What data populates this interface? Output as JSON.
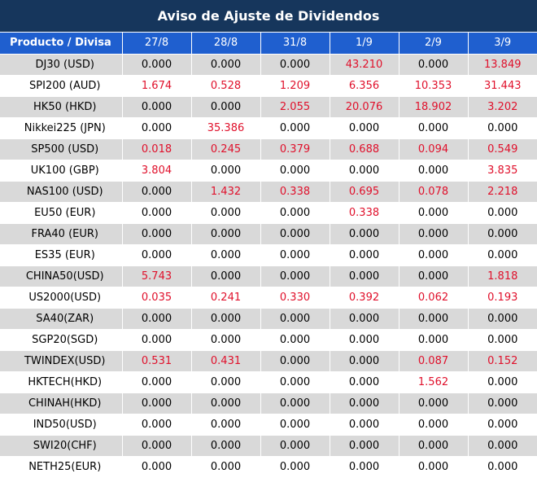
{
  "title": "Aviso de Ajuste de Dividendos",
  "header": {
    "product_label": "Producto / Divisa",
    "dates": [
      "27/8",
      "28/8",
      "31/8",
      "1/9",
      "2/9",
      "3/9"
    ]
  },
  "colors": {
    "title_bg": "#16365c",
    "header_bg": "#1f5fcf",
    "alt_row": "#d9d9d9",
    "nonzero": "#e0102b"
  },
  "rows": [
    {
      "product": "DJ30 (USD)",
      "values": [
        "0.000",
        "0.000",
        "0.000",
        "43.210",
        "0.000",
        "13.849"
      ]
    },
    {
      "product": "SPI200 (AUD)",
      "values": [
        "1.674",
        "0.528",
        "1.209",
        "6.356",
        "10.353",
        "31.443"
      ]
    },
    {
      "product": "HK50 (HKD)",
      "values": [
        "0.000",
        "0.000",
        "2.055",
        "20.076",
        "18.902",
        "3.202"
      ]
    },
    {
      "product": "Nikkei225 (JPN)",
      "values": [
        "0.000",
        "35.386",
        "0.000",
        "0.000",
        "0.000",
        "0.000"
      ]
    },
    {
      "product": "SP500 (USD)",
      "values": [
        "0.018",
        "0.245",
        "0.379",
        "0.688",
        "0.094",
        "0.549"
      ]
    },
    {
      "product": "UK100 (GBP)",
      "values": [
        "3.804",
        "0.000",
        "0.000",
        "0.000",
        "0.000",
        "3.835"
      ]
    },
    {
      "product": "NAS100 (USD)",
      "values": [
        "0.000",
        "1.432",
        "0.338",
        "0.695",
        "0.078",
        "2.218"
      ]
    },
    {
      "product": "EU50 (EUR)",
      "values": [
        "0.000",
        "0.000",
        "0.000",
        "0.338",
        "0.000",
        "0.000"
      ]
    },
    {
      "product": "FRA40 (EUR)",
      "values": [
        "0.000",
        "0.000",
        "0.000",
        "0.000",
        "0.000",
        "0.000"
      ]
    },
    {
      "product": "ES35 (EUR)",
      "values": [
        "0.000",
        "0.000",
        "0.000",
        "0.000",
        "0.000",
        "0.000"
      ]
    },
    {
      "product": "CHINA50(USD)",
      "values": [
        "5.743",
        "0.000",
        "0.000",
        "0.000",
        "0.000",
        "1.818"
      ]
    },
    {
      "product": "US2000(USD)",
      "values": [
        "0.035",
        "0.241",
        "0.330",
        "0.392",
        "0.062",
        "0.193"
      ]
    },
    {
      "product": "SA40(ZAR)",
      "values": [
        "0.000",
        "0.000",
        "0.000",
        "0.000",
        "0.000",
        "0.000"
      ]
    },
    {
      "product": "SGP20(SGD)",
      "values": [
        "0.000",
        "0.000",
        "0.000",
        "0.000",
        "0.000",
        "0.000"
      ]
    },
    {
      "product": "TWINDEX(USD)",
      "values": [
        "0.531",
        "0.431",
        "0.000",
        "0.000",
        "0.087",
        "0.152"
      ]
    },
    {
      "product": "HKTECH(HKD)",
      "values": [
        "0.000",
        "0.000",
        "0.000",
        "0.000",
        "1.562",
        "0.000"
      ]
    },
    {
      "product": "CHINAH(HKD)",
      "values": [
        "0.000",
        "0.000",
        "0.000",
        "0.000",
        "0.000",
        "0.000"
      ]
    },
    {
      "product": "IND50(USD)",
      "values": [
        "0.000",
        "0.000",
        "0.000",
        "0.000",
        "0.000",
        "0.000"
      ]
    },
    {
      "product": "SWI20(CHF)",
      "values": [
        "0.000",
        "0.000",
        "0.000",
        "0.000",
        "0.000",
        "0.000"
      ]
    },
    {
      "product": "NETH25(EUR)",
      "values": [
        "0.000",
        "0.000",
        "0.000",
        "0.000",
        "0.000",
        "0.000"
      ]
    }
  ]
}
